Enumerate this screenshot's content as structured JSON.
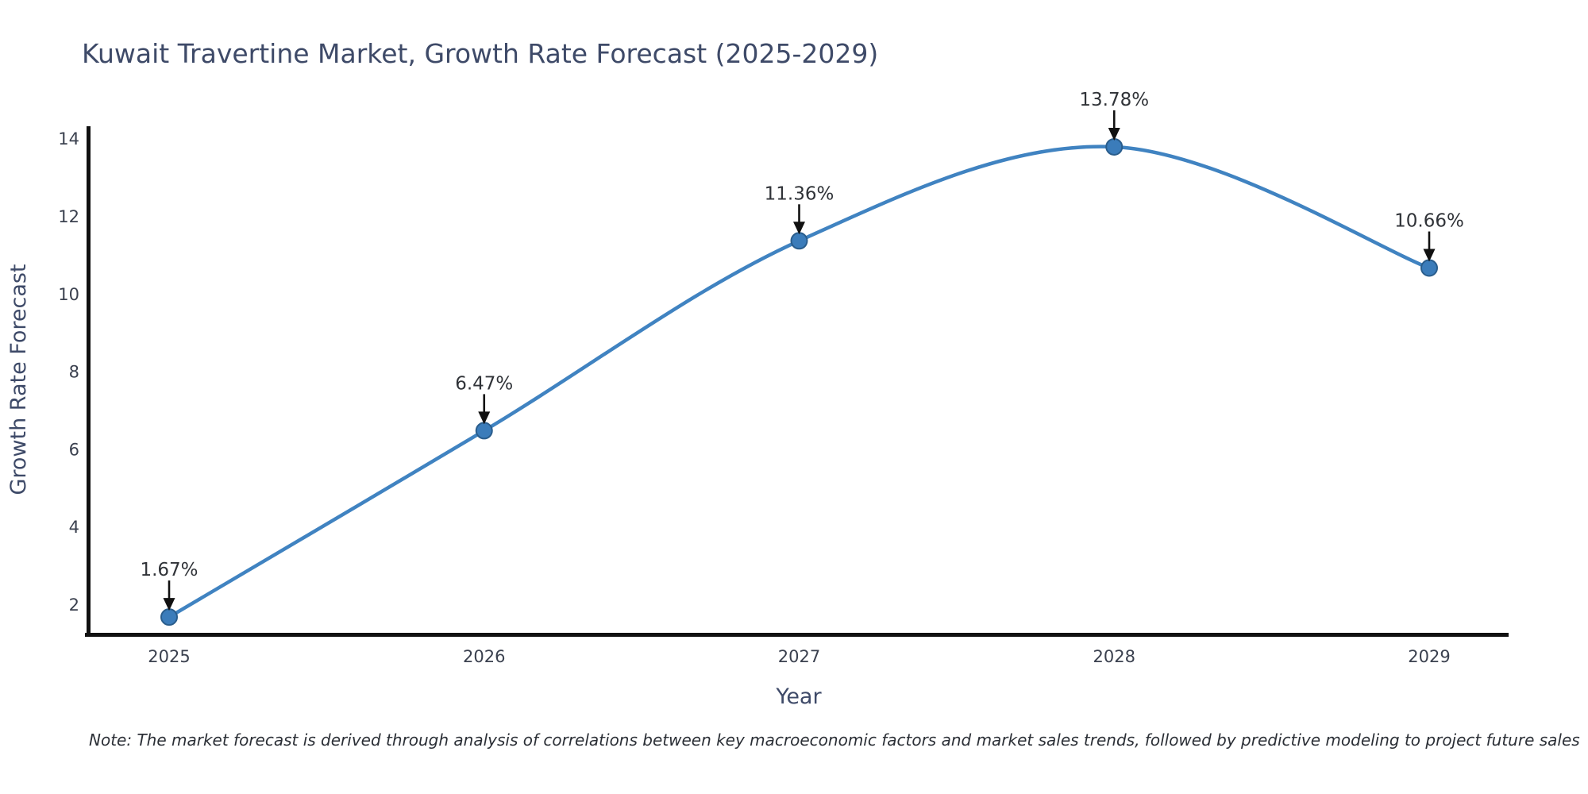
{
  "figure": {
    "note": "Note: The market forecast is derived through analysis of correlations between key macroeconomic factors and market sales trends, followed by predictive modeling to project future sales"
  },
  "chart_data": {
    "type": "line",
    "title": "Kuwait Travertine Market, Growth Rate Forecast (2025-2029)",
    "xlabel": "Year",
    "ylabel": "Growth Rate Forecast",
    "categories": [
      "2025",
      "2026",
      "2027",
      "2028",
      "2029"
    ],
    "values": [
      1.67,
      6.47,
      11.36,
      13.78,
      10.66
    ],
    "point_labels": [
      "1.67%",
      "6.47%",
      "11.36%",
      "13.78%",
      "10.66%"
    ],
    "yticks": [
      2,
      4,
      6,
      8,
      10,
      12,
      14
    ],
    "ylim": [
      1.2,
      14.3
    ],
    "grid": false,
    "legend": "none",
    "smooth": true,
    "annotations": "each point labeled with percentage value and a black downward arrow",
    "colors": {
      "line": "#4083c1",
      "marker_fill": "#3b7cba",
      "marker_edge": "#2a5d8c",
      "arrow": "#111111",
      "spine": "#111111",
      "title_text": "#3e4a68",
      "tick_text": "#3b414f",
      "label_text": "#303338"
    }
  }
}
